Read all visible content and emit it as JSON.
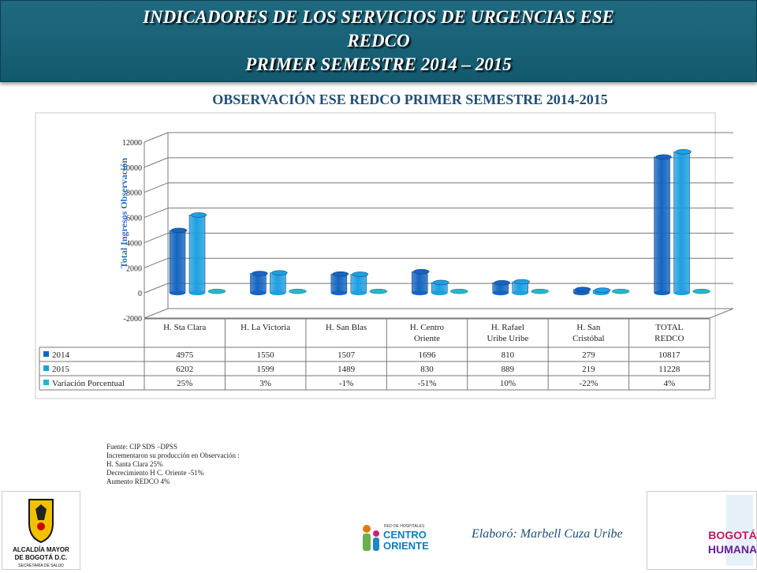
{
  "header": {
    "line1": "INDICADORES DE LOS SERVICIOS DE URGENCIAS ESE",
    "line2": "REDCO",
    "line3": "PRIMER SEMESTRE 2014 – 2015"
  },
  "chart_data": {
    "type": "bar",
    "title": "OBSERVACIÓN ESE REDCO PRIMER SEMESTRE 2014-2015",
    "ylabel": "Total Ingresos Observación",
    "ylim": [
      -2000,
      12000
    ],
    "yticks": [
      "-2000",
      "0",
      "2000",
      "4000",
      "6000",
      "8000",
      "10000",
      "12000"
    ],
    "categories": [
      "H. Sta Clara",
      "H. La Victoria",
      "H. San Blas",
      "H. Centro Oriente",
      "H. Rafael Uribe Uribe",
      "H. San Cristóbal",
      "TOTAL REDCO"
    ],
    "category_lines": [
      [
        "H. Sta Clara"
      ],
      [
        "H. La Victoria"
      ],
      [
        "H. San Blas"
      ],
      [
        "H. Centro",
        "Oriente"
      ],
      [
        "H. Rafael",
        "Uribe Uribe"
      ],
      [
        "H. San",
        "Cristóbal"
      ],
      [
        "TOTAL",
        "REDCO"
      ]
    ],
    "series": [
      {
        "name": "2014",
        "values": [
          4975,
          1550,
          1507,
          1696,
          810,
          279,
          10817
        ],
        "color": "#1565c0"
      },
      {
        "name": "2015",
        "values": [
          6202,
          1599,
          1489,
          830,
          889,
          219,
          11228
        ],
        "color": "#1e9fe0"
      },
      {
        "name": "Variación Porcentual",
        "values": [
          0.25,
          0.03,
          -0.01,
          -0.51,
          0.1,
          -0.22,
          0.04
        ],
        "color": "#26b5c8"
      }
    ],
    "table_rows": [
      {
        "label": "2014",
        "cells": [
          "4975",
          "1550",
          "1507",
          "1696",
          "810",
          "279",
          "10817"
        ]
      },
      {
        "label": "2015",
        "cells": [
          "6202",
          "1599",
          "1489",
          "830",
          "889",
          "219",
          "11228"
        ]
      },
      {
        "label": "Variación Porcentual",
        "cells": [
          "25%",
          "3%",
          "-1%",
          "-51%",
          "10%",
          "-22%",
          "4%"
        ]
      }
    ]
  },
  "notes": [
    "Fuente: CIP SDS –DPSS",
    "Incrementaron su producción en Observación :",
    "H. Santa Clara 25%",
    "Decrecimiento H C. Oriente -51%",
    "Aumento REDCO 4%"
  ],
  "credit": "Elaboró: Marbell Cuza Uribe",
  "logos": {
    "alcaldia_line1": "ALCALDÍA MAYOR",
    "alcaldia_line2": "DE BOGOTÁ D.C.",
    "alcaldia_line3": "SECRETARÍA DE SALUD",
    "red_line1": "RED DE HOSPITALES",
    "red_line2": "CENTRO",
    "red_line3": "ORIENTE",
    "bogota_line1": "BOGOTÁ",
    "bogota_line2": "HUMANA"
  }
}
